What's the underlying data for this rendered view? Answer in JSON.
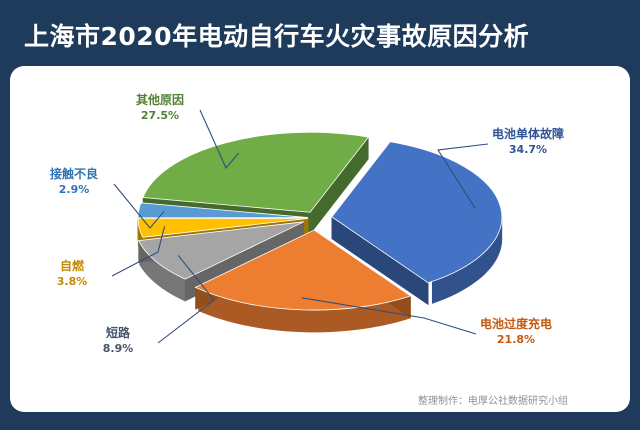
{
  "header": {
    "title": "上海市2020年电动自行车火灾事故原因分析"
  },
  "footer": {
    "source": "整理制作：电厚公社数据研究小组"
  },
  "colors": {
    "background": "#1f3b5c",
    "panel": "#ffffff"
  },
  "chart_data": {
    "type": "pie",
    "variant": "3d-exploded",
    "title": "上海市2020年电动自行车火灾事故原因分析",
    "slices": [
      {
        "name": "电池单体故障",
        "value": 34.7,
        "label": "34.7%",
        "color": "#4472c4",
        "label_color": "#2f5597"
      },
      {
        "name": "电池过度充电",
        "value": 21.8,
        "label": "21.8%",
        "color": "#ed7d31",
        "label_color": "#c55a11"
      },
      {
        "name": "短路",
        "value": 8.9,
        "label": "8.9%",
        "color": "#a5a5a5",
        "label_color": "#44546a"
      },
      {
        "name": "自燃",
        "value": 3.8,
        "label": "3.8%",
        "color": "#ffc000",
        "label_color": "#c58a00"
      },
      {
        "name": "接触不良",
        "value": 2.9,
        "label": "2.9%",
        "color": "#5b9bd5",
        "label_color": "#2f75b5"
      },
      {
        "name": "其他原因",
        "value": 27.5,
        "label": "27.5%",
        "color": "#70ad47",
        "label_color": "#548235"
      }
    ]
  }
}
